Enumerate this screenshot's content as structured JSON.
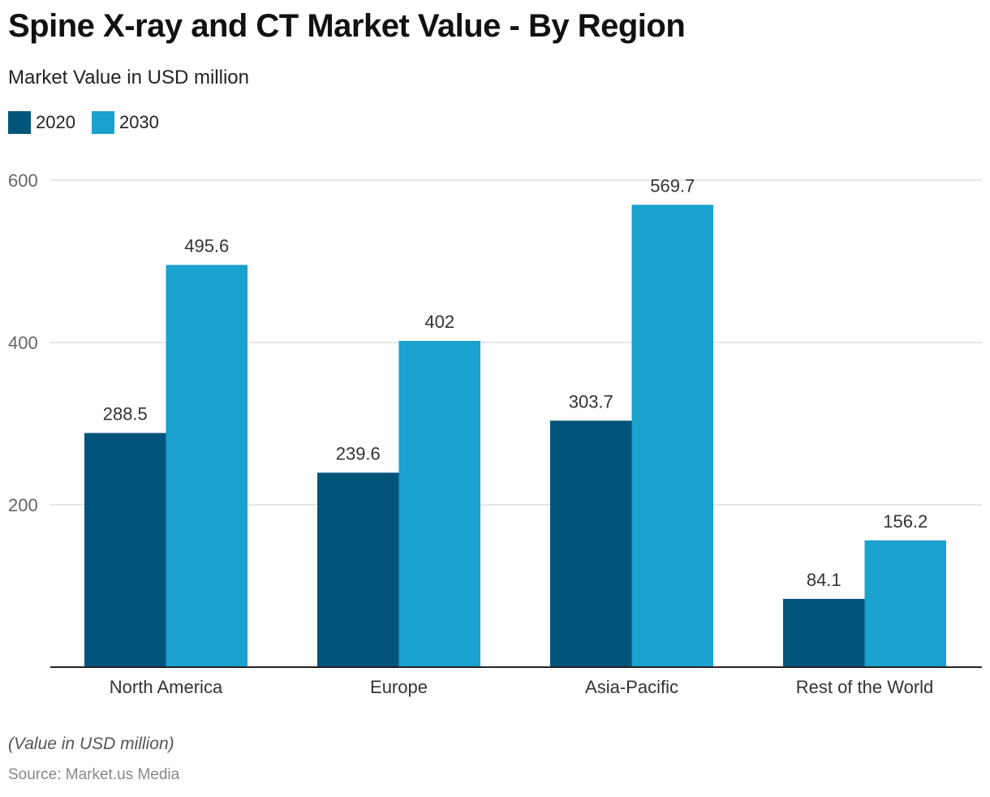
{
  "header": {
    "title": "Spine X-ray and CT Market Value - By Region",
    "subtitle": "Market Value in USD million"
  },
  "footer": {
    "note": "(Value in USD million)",
    "source": "Source: Market.us Media"
  },
  "colors": {
    "series_2020": "#03547b",
    "series_2030": "#1aa1ce",
    "grid": "#dddddd",
    "axis": "#222222"
  },
  "chart_data": {
    "type": "bar",
    "title": "Spine X-ray and CT Market Value - By Region",
    "subtitle": "Market Value in USD million",
    "xlabel": "",
    "ylabel": "",
    "categories": [
      "North America",
      "Europe",
      "Asia-Pacific",
      "Rest of the World"
    ],
    "series": [
      {
        "name": "2020",
        "values": [
          288.5,
          239.6,
          303.7,
          84.1
        ]
      },
      {
        "name": "2030",
        "values": [
          495.6,
          402,
          569.7,
          156.2
        ]
      }
    ],
    "data_labels": [
      [
        "288.5",
        "239.6",
        "303.7",
        "84.1"
      ],
      [
        "495.6",
        "402",
        "569.7",
        "156.2"
      ]
    ],
    "ylim": [
      0,
      600
    ],
    "yticks": [
      200,
      400,
      600
    ],
    "ytick_labels": [
      "200",
      "400",
      "600"
    ],
    "grid": true,
    "legend_position": "top-left"
  }
}
